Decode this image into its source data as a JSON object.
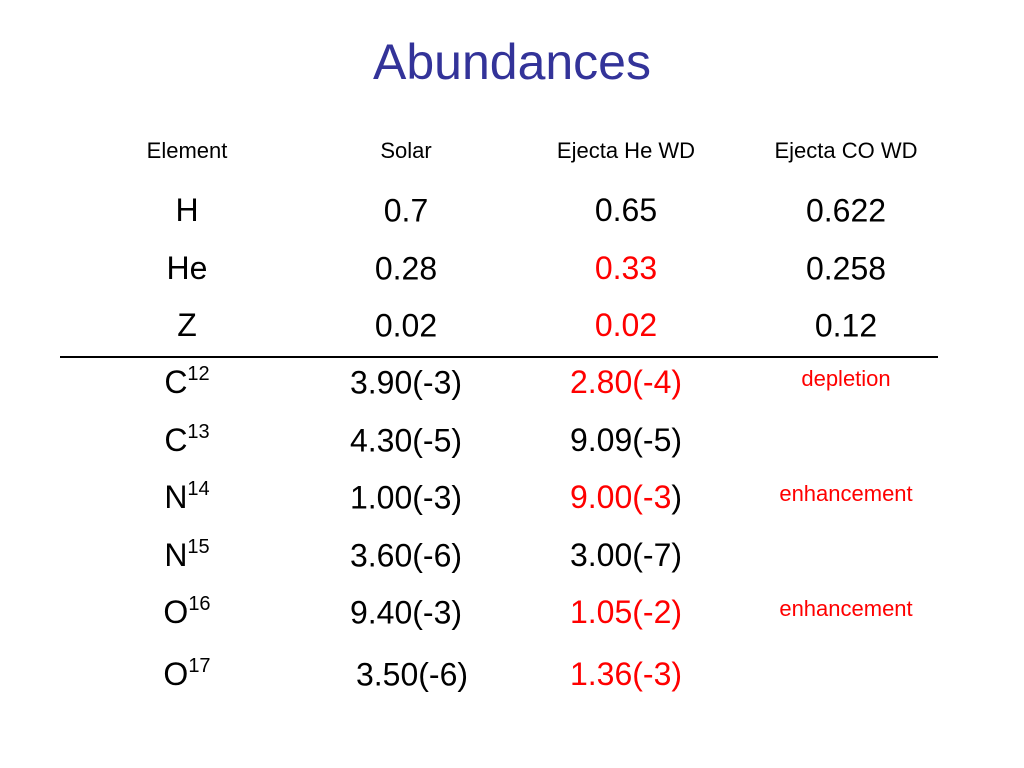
{
  "title": "Abundances",
  "table": {
    "header": [
      "Element",
      "Solar",
      "Ejecta He WD",
      "Ejecta CO WD"
    ],
    "rows": [
      {
        "element": "H",
        "solar": "0.7",
        "he": [
          {
            "text": "0.65",
            "color": "#000000"
          }
        ],
        "co": "0.622"
      },
      {
        "element": "He",
        "solar": "0.28",
        "he": [
          {
            "text": "0.33",
            "color": "#ff0000"
          }
        ],
        "co": "0.258"
      },
      {
        "element": "Z",
        "solar": "0.02",
        "he": [
          {
            "text": "0.02",
            "color": "#ff0000"
          }
        ],
        "co": "0.12"
      },
      {
        "element": "C",
        "isotope": "12",
        "solar": "3.90(-3)",
        "he": [
          {
            "text": "2.80(-4)",
            "color": "#ff0000"
          }
        ],
        "co_note": "depletion"
      },
      {
        "element": "C",
        "isotope": "13",
        "solar": "4.30(-5)",
        "he": [
          {
            "text": "9.09(-5)",
            "color": "#000000"
          }
        ]
      },
      {
        "element": "N",
        "isotope": "14",
        "solar": "1.00(-3)",
        "he": [
          {
            "text": "9.00(-3",
            "color": "#ff0000"
          },
          {
            "text": ")",
            "color": "#000000"
          }
        ],
        "co_note": "enhancement"
      },
      {
        "element": "N",
        "isotope": "15",
        "solar": "3.60(-6)",
        "he": [
          {
            "text": "3.00(-7)",
            "color": "#000000"
          }
        ]
      },
      {
        "element": "O",
        "isotope": "16",
        "solar": "9.40(-3)",
        "he": [
          {
            "text": "1.05(-2)",
            "color": "#ff0000"
          }
        ],
        "co_note": "enhancement"
      },
      {
        "element": "O",
        "isotope": "17",
        "solar": "3.50(-6)",
        "he": [
          {
            "text": "1.36(-3)",
            "color": "#ff0000"
          }
        ]
      }
    ],
    "divider_after_row": 2,
    "note_color": "#ff0000"
  }
}
